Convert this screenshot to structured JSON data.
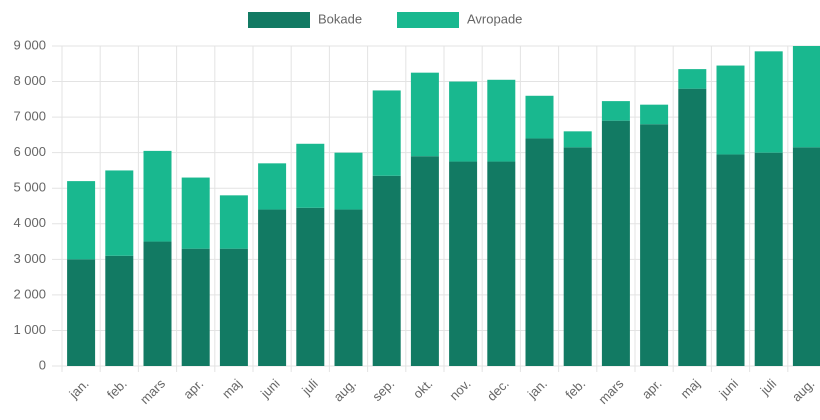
{
  "chart_data": {
    "type": "bar",
    "stacked": true,
    "categories": [
      "jan.",
      "feb.",
      "mars",
      "apr.",
      "maj",
      "juni",
      "juli",
      "aug.",
      "sep.",
      "okt.",
      "nov.",
      "dec.",
      "jan.",
      "feb.",
      "mars",
      "apr.",
      "maj",
      "juni",
      "juli",
      "aug."
    ],
    "series": [
      {
        "name": "Bokade",
        "color": "#127a63",
        "values": [
          3000,
          3100,
          3500,
          3300,
          3300,
          4400,
          4450,
          4400,
          5350,
          5900,
          5750,
          5750,
          6400,
          6150,
          6900,
          6800,
          7800,
          5950,
          6000,
          6150
        ]
      },
      {
        "name": "Avropade",
        "color": "#19b88f",
        "values": [
          2200,
          2400,
          2550,
          2000,
          1500,
          1300,
          1800,
          1600,
          2400,
          2350,
          2250,
          2300,
          1200,
          450,
          550,
          550,
          550,
          2500,
          2850,
          2850
        ]
      }
    ],
    "ylim": [
      0,
      9000
    ],
    "yticks": [
      0,
      {
        "value": 1000,
        "label": "1 000"
      },
      {
        "value": 2000,
        "label": "2 000"
      },
      {
        "value": 3000,
        "label": "3 000"
      },
      {
        "value": 4000,
        "label": "4 000"
      },
      {
        "value": 5000,
        "label": "5 000"
      },
      {
        "value": 6000,
        "label": "6 000"
      },
      {
        "value": 7000,
        "label": "7 000"
      },
      {
        "value": 8000,
        "label": "8 000"
      },
      {
        "value": 9000,
        "label": "9 000"
      }
    ],
    "grid": true,
    "legend": "top"
  }
}
